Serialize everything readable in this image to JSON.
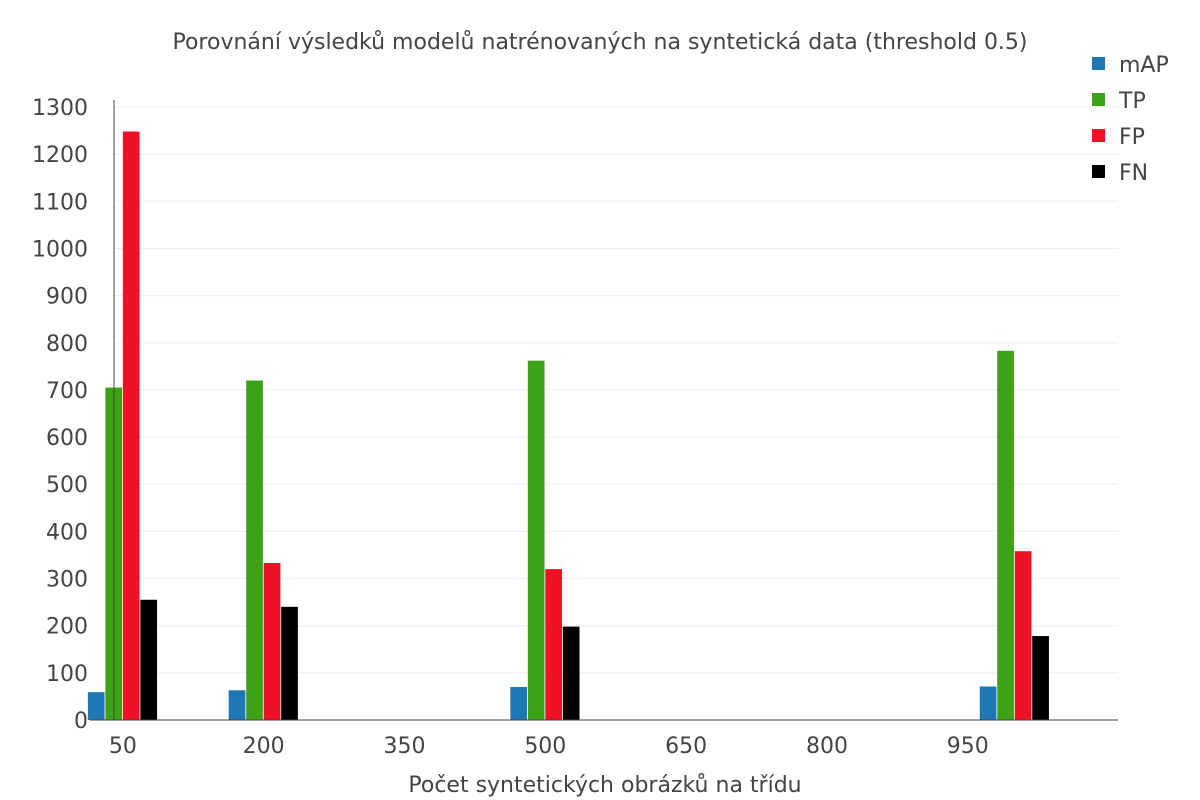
{
  "chart_data": {
    "type": "bar",
    "title": "Porovnání výsledků modelů natrénovaných na syntetická data (threshold 0.5)",
    "xlabel": "Počet syntetických obrázků na třídu",
    "ylabel": "",
    "x": [
      50,
      200,
      500,
      1000
    ],
    "xlim": [
      15,
      1110
    ],
    "xticks": [
      "50",
      "200",
      "350",
      "500",
      "650",
      "800",
      "950"
    ],
    "xtick_values": [
      50,
      200,
      350,
      500,
      650,
      800,
      950
    ],
    "ylim": [
      0,
      1300
    ],
    "yticks": [
      0,
      100,
      200,
      300,
      400,
      500,
      600,
      700,
      800,
      900,
      1000,
      1100,
      1200,
      1300
    ],
    "grid": true,
    "legend_position": "top-right",
    "series": [
      {
        "name": "mAP",
        "color": "#1f77b4",
        "values": [
          59,
          63,
          70,
          71
        ]
      },
      {
        "name": "TP",
        "color": "#3ca317",
        "values": [
          705,
          720,
          762,
          783
        ]
      },
      {
        "name": "FP",
        "color": "#f01127",
        "values": [
          1248,
          333,
          320,
          358
        ]
      },
      {
        "name": "FN",
        "color": "#000000",
        "values": [
          255,
          240,
          198,
          178
        ]
      }
    ]
  }
}
